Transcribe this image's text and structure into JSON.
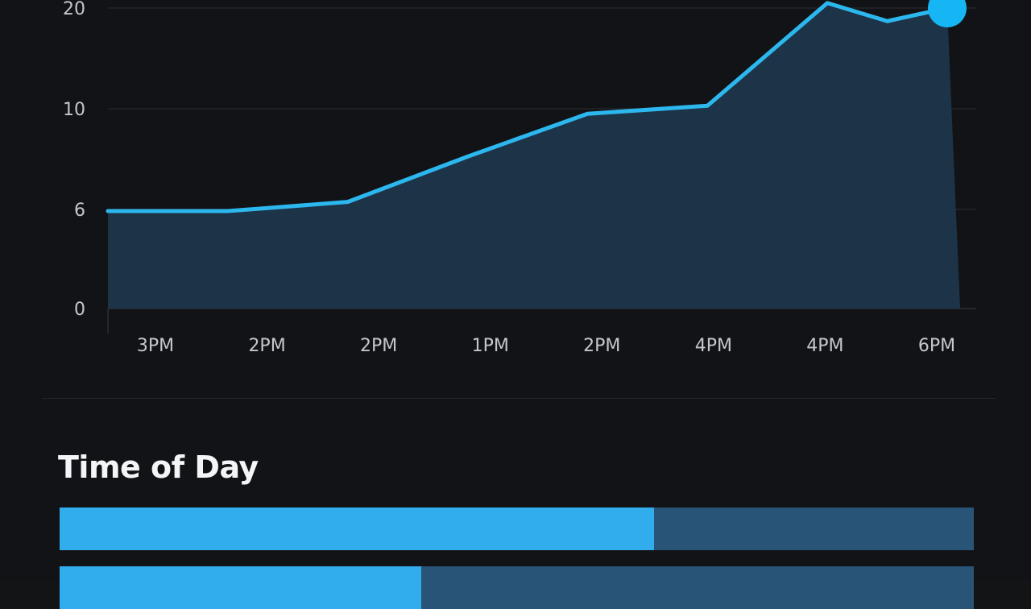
{
  "colors": {
    "background": "#131416",
    "line": "#2cb7ee",
    "area_fill": "#1d3347",
    "grid": "#2a2e33",
    "bar_fill": "#31aced",
    "bar_track": "#275477"
  },
  "chart_data": {
    "type": "area",
    "title": "",
    "xlabel": "",
    "ylabel": "",
    "y_tick_labels": [
      "0",
      "6",
      "10",
      "20"
    ],
    "categories": [
      "3PM",
      "2PM",
      "2PM",
      "1PM",
      "2PM",
      "4PM",
      "4PM",
      "6PM"
    ],
    "series": [
      {
        "values": [
          5.9,
          5.9,
          6.3,
          8.1,
          9.8,
          10.3,
          20.5,
          20.0
        ],
        "intermediate_points": [
          {
            "after_index": 6,
            "value": 18.7
          }
        ]
      }
    ],
    "highlight_last_point": true,
    "grid": true
  },
  "section": {
    "title": "Time of Day"
  },
  "bars": [
    {
      "fill_fraction": 0.65
    },
    {
      "fill_fraction": 0.396
    }
  ]
}
